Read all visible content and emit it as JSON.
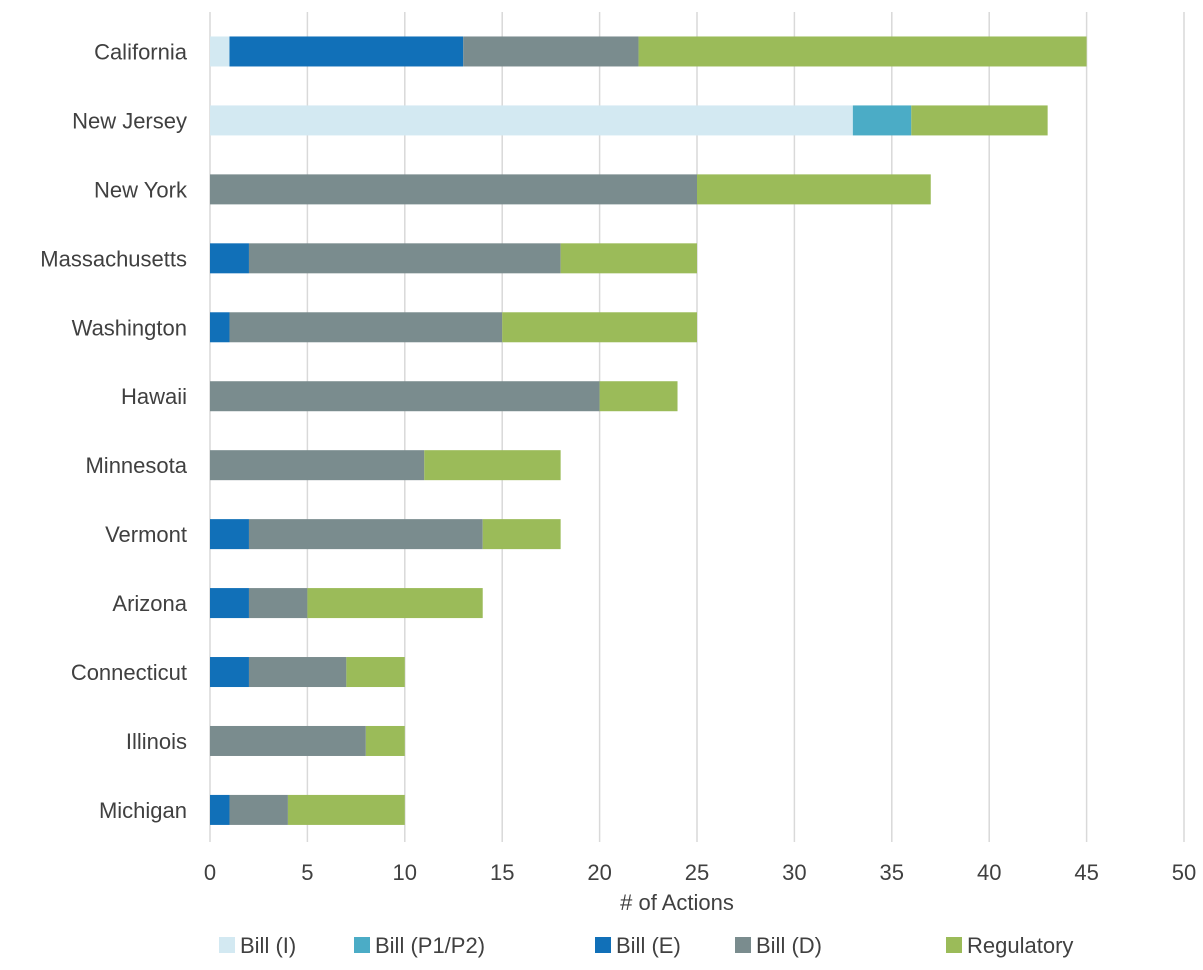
{
  "chart_data": {
    "type": "bar",
    "orientation": "horizontal",
    "stacked": true,
    "categories": [
      "California",
      "New Jersey",
      "New York",
      "Massachusetts",
      "Washington",
      "Hawaii",
      "Minnesota",
      "Vermont",
      "Arizona",
      "Connecticut",
      "Illinois",
      "Michigan"
    ],
    "series": [
      {
        "name": "Bill (I)",
        "color": "#d3e9f2",
        "values": [
          1,
          33,
          0,
          0,
          0,
          0,
          0,
          0,
          0,
          0,
          0,
          0
        ]
      },
      {
        "name": "Bill (P1/P2)",
        "color": "#4bacc6",
        "values": [
          0,
          3,
          0,
          0,
          0,
          0,
          0,
          0,
          0,
          0,
          0,
          0
        ]
      },
      {
        "name": "Bill (E)",
        "color": "#1170b8",
        "values": [
          12,
          0,
          0,
          2,
          1,
          0,
          0,
          2,
          2,
          2,
          0,
          1
        ]
      },
      {
        "name": "Bill (D)",
        "color": "#7a8c8e",
        "values": [
          9,
          0,
          25,
          16,
          14,
          20,
          11,
          12,
          3,
          5,
          8,
          3
        ]
      },
      {
        "name": "Regulatory",
        "color": "#9bbb59",
        "values": [
          23,
          7,
          12,
          7,
          10,
          4,
          7,
          4,
          9,
          3,
          2,
          6
        ]
      }
    ],
    "xlabel": "# of Actions",
    "xlim": [
      0,
      50
    ],
    "xticks": [
      0,
      5,
      10,
      15,
      20,
      25,
      30,
      35,
      40,
      45,
      50
    ],
    "grid": "vertical",
    "legend": "bottom"
  }
}
